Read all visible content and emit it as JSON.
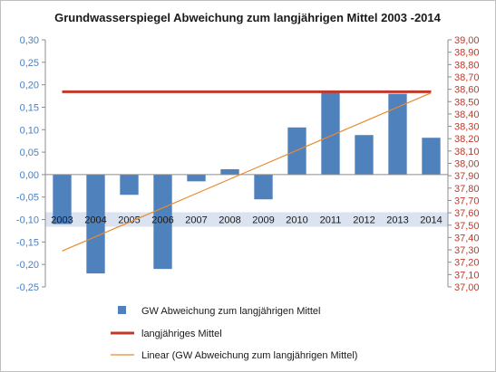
{
  "chart_data": {
    "type": "bar",
    "title": "Grundwasserspiegel Abweichung zum langjährigen Mittel 2003  -2014",
    "categories": [
      "2003",
      "2004",
      "2005",
      "2006",
      "2007",
      "2008",
      "2009",
      "2010",
      "2011",
      "2012",
      "2013",
      "2014"
    ],
    "series": [
      {
        "name": "GW Abweichung zum langjährigen Mittel",
        "type": "bar",
        "axis": "left",
        "color": "#4f81bd",
        "values": [
          -0.11,
          -0.22,
          -0.045,
          -0.21,
          -0.015,
          0.012,
          -0.055,
          0.105,
          0.185,
          0.088,
          0.18,
          0.082
        ]
      },
      {
        "name": "langjähriges Mittel",
        "type": "line",
        "axis": "right",
        "color": "#c0392b",
        "values": [
          38.58,
          38.58,
          38.58,
          38.58,
          38.58,
          38.58,
          38.58,
          38.58,
          38.58,
          38.58,
          38.58,
          38.58
        ]
      },
      {
        "name": "Linear (GW Abweichung zum langjährigen Mittel)",
        "type": "trendline",
        "axis": "left",
        "color": "#e98a2e",
        "values": [
          -0.17,
          -0.138,
          -0.106,
          -0.074,
          -0.042,
          -0.01,
          0.022,
          0.054,
          0.086,
          0.118,
          0.15,
          0.182
        ]
      }
    ],
    "left_axis": {
      "ylim": [
        -0.25,
        0.3
      ],
      "ticks": [
        "0,30",
        "0,25",
        "0,20",
        "0,15",
        "0,10",
        "0,05",
        "0,00",
        "-0,05",
        "-0,10",
        "-0,15",
        "-0,20",
        "-0,25"
      ],
      "color": "#4a7fc1"
    },
    "right_axis": {
      "ylim": [
        37.0,
        39.0
      ],
      "ticks": [
        "39,00",
        "38,90",
        "38,80",
        "38,70",
        "38,60",
        "38,50",
        "38,40",
        "38,30",
        "38,20",
        "38,10",
        "38,00",
        "37,90",
        "37,80",
        "37,70",
        "37,60",
        "37,50",
        "37,40",
        "37,30",
        "37,20",
        "37,10",
        "37,00"
      ],
      "color": "#c0392b"
    },
    "category_label_band_at": -0.1,
    "legend_position": "bottom",
    "grid": false
  }
}
